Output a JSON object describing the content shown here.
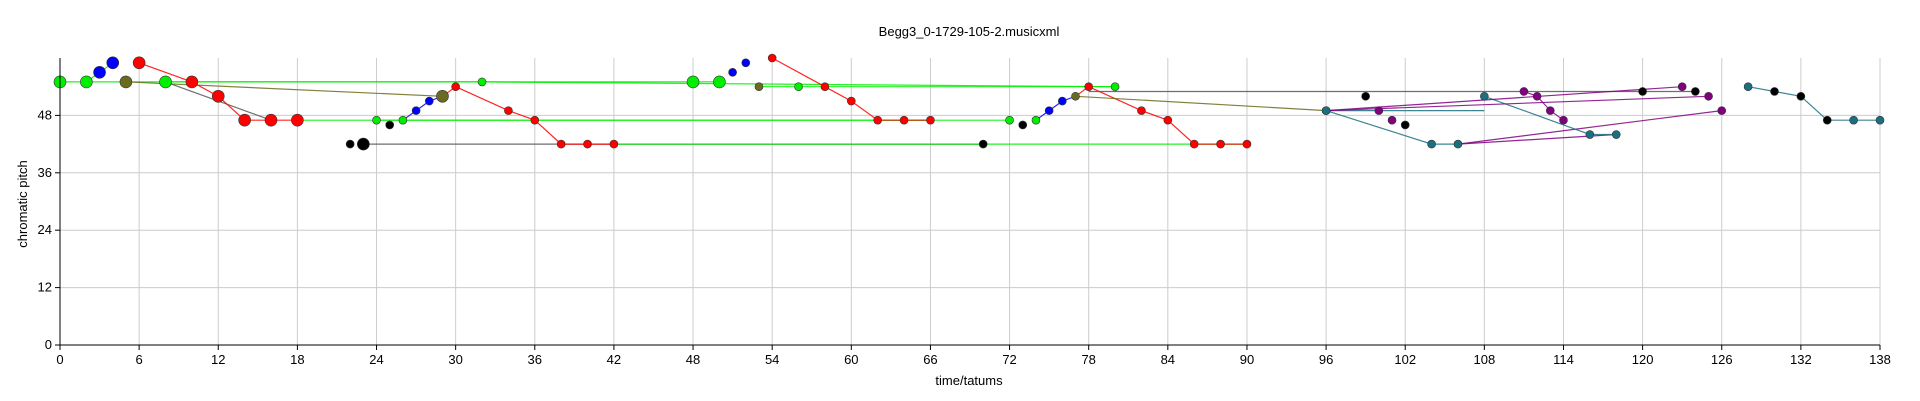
{
  "chart_data": {
    "type": "scatter",
    "title": "Begg3_0-1729-105-2.musicxml",
    "xlabel": "time/tatums",
    "ylabel": "chromatic pitch",
    "xlim": [
      0,
      138
    ],
    "ylim": [
      0,
      60
    ],
    "xticks": [
      0,
      6,
      12,
      18,
      24,
      30,
      36,
      42,
      48,
      54,
      60,
      66,
      72,
      78,
      84,
      90,
      96,
      102,
      108,
      114,
      120,
      126,
      132,
      138
    ],
    "yticks": [
      0,
      12,
      24,
      36,
      48
    ],
    "grid": true,
    "colors": {
      "red": "#ff0000",
      "green": "#00ee00",
      "blue": "#0000ff",
      "black": "#000000",
      "olive": "#6b6b1f",
      "purple": "#800080",
      "teal": "#1b7080",
      "gray": "#555555"
    },
    "series": [
      {
        "color": "red",
        "points": [
          [
            6,
            59
          ],
          [
            10,
            55
          ],
          [
            12,
            52
          ],
          [
            14,
            47
          ],
          [
            16,
            47
          ],
          [
            18,
            47
          ]
        ],
        "size": "large"
      },
      {
        "color": "green",
        "points": [
          [
            0,
            55
          ],
          [
            2,
            55
          ],
          [
            8,
            55
          ]
        ],
        "size": "large"
      },
      {
        "color": "blue",
        "points": [
          [
            3,
            57
          ],
          [
            4,
            59
          ]
        ],
        "size": "large"
      },
      {
        "color": "olive",
        "points": [
          [
            5,
            55
          ]
        ],
        "size": "large"
      },
      {
        "color": "black",
        "points": [
          [
            23,
            42
          ]
        ],
        "size": "large"
      },
      {
        "color": "red",
        "points": [
          [
            30,
            54
          ],
          [
            34,
            49
          ],
          [
            36,
            47
          ],
          [
            38,
            42
          ],
          [
            40,
            42
          ],
          [
            42,
            42
          ]
        ]
      },
      {
        "color": "green",
        "points": [
          [
            24,
            47
          ],
          [
            26,
            47
          ],
          [
            32,
            55
          ]
        ]
      },
      {
        "color": "blue",
        "points": [
          [
            27,
            49
          ],
          [
            28,
            51
          ]
        ]
      },
      {
        "color": "black",
        "points": [
          [
            22,
            42
          ],
          [
            25,
            46
          ]
        ]
      },
      {
        "color": "olive",
        "points": [
          [
            29,
            52
          ]
        ],
        "size": "large"
      },
      {
        "color": "green",
        "points": [
          [
            48,
            55
          ],
          [
            50,
            55
          ]
        ],
        "size": "large"
      },
      {
        "color": "blue",
        "points": [
          [
            51,
            57
          ],
          [
            52,
            59
          ]
        ]
      },
      {
        "color": "olive",
        "points": [
          [
            53,
            54
          ]
        ]
      },
      {
        "color": "red",
        "points": [
          [
            54,
            60
          ],
          [
            58,
            54
          ],
          [
            60,
            51
          ],
          [
            62,
            47
          ],
          [
            64,
            47
          ],
          [
            66,
            47
          ]
        ]
      },
      {
        "color": "green",
        "points": [
          [
            56,
            54
          ],
          [
            72,
            47
          ],
          [
            74,
            47
          ],
          [
            80,
            54
          ]
        ]
      },
      {
        "color": "black",
        "points": [
          [
            73,
            46
          ],
          [
            70,
            42
          ]
        ]
      },
      {
        "color": "blue",
        "points": [
          [
            75,
            49
          ],
          [
            76,
            51
          ]
        ]
      },
      {
        "color": "olive",
        "points": [
          [
            77,
            52
          ]
        ]
      },
      {
        "color": "red",
        "points": [
          [
            78,
            54
          ],
          [
            82,
            49
          ],
          [
            84,
            47
          ],
          [
            86,
            42
          ],
          [
            88,
            42
          ],
          [
            90,
            42
          ]
        ]
      },
      {
        "color": "purple",
        "points": [
          [
            96,
            49
          ],
          [
            100,
            49
          ],
          [
            101,
            47
          ],
          [
            111,
            53
          ],
          [
            112,
            52
          ],
          [
            113,
            49
          ],
          [
            114,
            47
          ],
          [
            123,
            54
          ],
          [
            125,
            52
          ],
          [
            126,
            49
          ]
        ]
      },
      {
        "color": "black",
        "points": [
          [
            99,
            52
          ],
          [
            102,
            46
          ],
          [
            120,
            53
          ],
          [
            124,
            53
          ],
          [
            130,
            53
          ],
          [
            132,
            52
          ],
          [
            134,
            47
          ]
        ]
      },
      {
        "color": "teal",
        "points": [
          [
            96,
            49
          ],
          [
            104,
            42
          ],
          [
            106,
            42
          ],
          [
            108,
            52
          ],
          [
            116,
            44
          ],
          [
            118,
            44
          ],
          [
            128,
            54
          ],
          [
            136,
            47
          ],
          [
            138,
            47
          ]
        ]
      }
    ],
    "connections": [
      {
        "color": "green",
        "points": [
          [
            0,
            55
          ],
          [
            2,
            55
          ]
        ]
      },
      {
        "color": "green",
        "points": [
          [
            2,
            55
          ],
          [
            50,
            55
          ]
        ]
      },
      {
        "color": "green",
        "points": [
          [
            2,
            55
          ],
          [
            3,
            57
          ],
          [
            4,
            59
          ]
        ]
      },
      {
        "color": "green",
        "points": [
          [
            8,
            55
          ],
          [
            32,
            55
          ]
        ]
      },
      {
        "color": "olive",
        "points": [
          [
            5,
            55
          ],
          [
            29,
            52
          ]
        ]
      },
      {
        "color": "gray",
        "points": [
          [
            8,
            55
          ],
          [
            16,
            47
          ]
        ]
      },
      {
        "color": "red",
        "points": [
          [
            6,
            59
          ],
          [
            10,
            55
          ],
          [
            12,
            52
          ],
          [
            14,
            47
          ],
          [
            16,
            47
          ],
          [
            18,
            47
          ]
        ]
      },
      {
        "color": "green",
        "points": [
          [
            18,
            47
          ],
          [
            66,
            47
          ]
        ]
      },
      {
        "color": "gray",
        "points": [
          [
            23,
            42
          ],
          [
            70,
            42
          ]
        ]
      },
      {
        "color": "green",
        "points": [
          [
            42,
            42
          ],
          [
            90,
            42
          ]
        ]
      },
      {
        "color": "red",
        "points": [
          [
            30,
            54
          ],
          [
            34,
            49
          ],
          [
            36,
            47
          ],
          [
            38,
            42
          ],
          [
            40,
            42
          ],
          [
            42,
            42
          ]
        ]
      },
      {
        "color": "blue",
        "points": [
          [
            26,
            47
          ],
          [
            27,
            49
          ],
          [
            28,
            51
          ],
          [
            29,
            52
          ]
        ]
      },
      {
        "color": "red",
        "points": [
          [
            29,
            52
          ],
          [
            30,
            54
          ]
        ]
      },
      {
        "color": "green",
        "points": [
          [
            24,
            47
          ],
          [
            72,
            47
          ]
        ]
      },
      {
        "color": "green",
        "points": [
          [
            32,
            55
          ],
          [
            80,
            54
          ]
        ]
      },
      {
        "color": "green",
        "points": [
          [
            53,
            54
          ],
          [
            80,
            54
          ]
        ]
      },
      {
        "color": "red",
        "points": [
          [
            54,
            60
          ],
          [
            58,
            54
          ],
          [
            60,
            51
          ],
          [
            62,
            47
          ],
          [
            64,
            47
          ],
          [
            66,
            47
          ]
        ]
      },
      {
        "color": "blue",
        "points": [
          [
            74,
            47
          ],
          [
            75,
            49
          ],
          [
            76,
            51
          ],
          [
            77,
            52
          ]
        ]
      },
      {
        "color": "red",
        "points": [
          [
            77,
            52
          ],
          [
            78,
            54
          ],
          [
            82,
            49
          ],
          [
            84,
            47
          ],
          [
            86,
            42
          ],
          [
            88,
            42
          ],
          [
            90,
            42
          ]
        ]
      },
      {
        "color": "olive",
        "points": [
          [
            77,
            52
          ],
          [
            96,
            49
          ]
        ]
      },
      {
        "color": "gray",
        "points": [
          [
            78,
            53
          ],
          [
            108,
            53
          ]
        ]
      },
      {
        "color": "gray",
        "points": [
          [
            108,
            53
          ],
          [
            124,
            53
          ]
        ]
      },
      {
        "color": "teal",
        "points": [
          [
            96,
            49
          ],
          [
            108,
            49
          ]
        ]
      },
      {
        "color": "teal",
        "points": [
          [
            96,
            49
          ],
          [
            104,
            42
          ],
          [
            106,
            42
          ]
        ]
      },
      {
        "color": "purple",
        "points": [
          [
            106,
            42
          ],
          [
            118,
            44
          ]
        ]
      },
      {
        "color": "purple",
        "points": [
          [
            106,
            42
          ],
          [
            126,
            49
          ]
        ]
      },
      {
        "color": "teal",
        "points": [
          [
            108,
            52
          ],
          [
            116,
            44
          ],
          [
            118,
            44
          ]
        ]
      },
      {
        "color": "purple",
        "points": [
          [
            96,
            49
          ],
          [
            123,
            54
          ]
        ]
      },
      {
        "color": "purple",
        "points": [
          [
            96,
            49
          ],
          [
            125,
            52
          ]
        ]
      },
      {
        "color": "purple",
        "points": [
          [
            111,
            53
          ],
          [
            112,
            52
          ],
          [
            113,
            49
          ],
          [
            114,
            47
          ]
        ]
      },
      {
        "color": "teal",
        "points": [
          [
            128,
            54
          ],
          [
            130,
            53
          ],
          [
            132,
            52
          ],
          [
            134,
            47
          ],
          [
            136,
            47
          ],
          [
            138,
            47
          ]
        ]
      }
    ]
  }
}
